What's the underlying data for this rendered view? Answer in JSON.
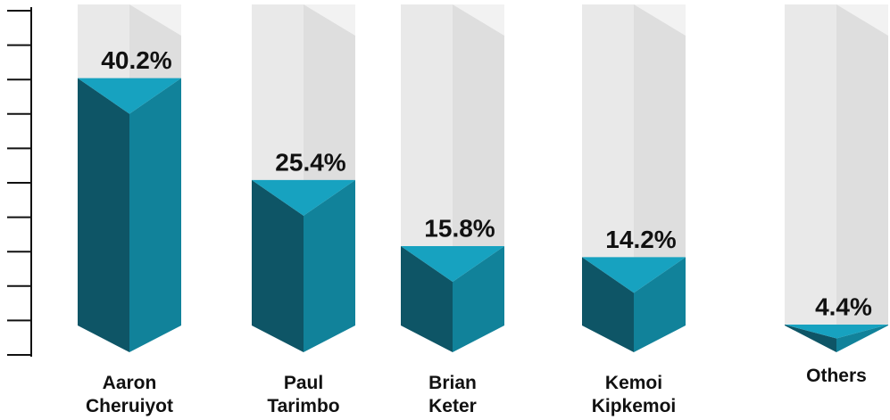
{
  "chart_data": {
    "type": "bar",
    "categories": [
      "Aaron Cheruiyot",
      "Paul Tarimbo",
      "Brian Keter",
      "Kemoi Kipkemoi",
      "Others"
    ],
    "values": [
      40.2,
      25.4,
      15.8,
      14.2,
      4.4
    ],
    "value_labels": [
      "40.2%",
      "25.4%",
      "15.8%",
      "14.2%",
      "4.4%"
    ],
    "colors": {
      "left": "#0e5566",
      "right": "#11829a",
      "top": "#17a2c0"
    },
    "ylim": [
      0,
      50
    ],
    "yticks": [
      0,
      5,
      10,
      15,
      20,
      25,
      30,
      35,
      40,
      45,
      50
    ]
  }
}
